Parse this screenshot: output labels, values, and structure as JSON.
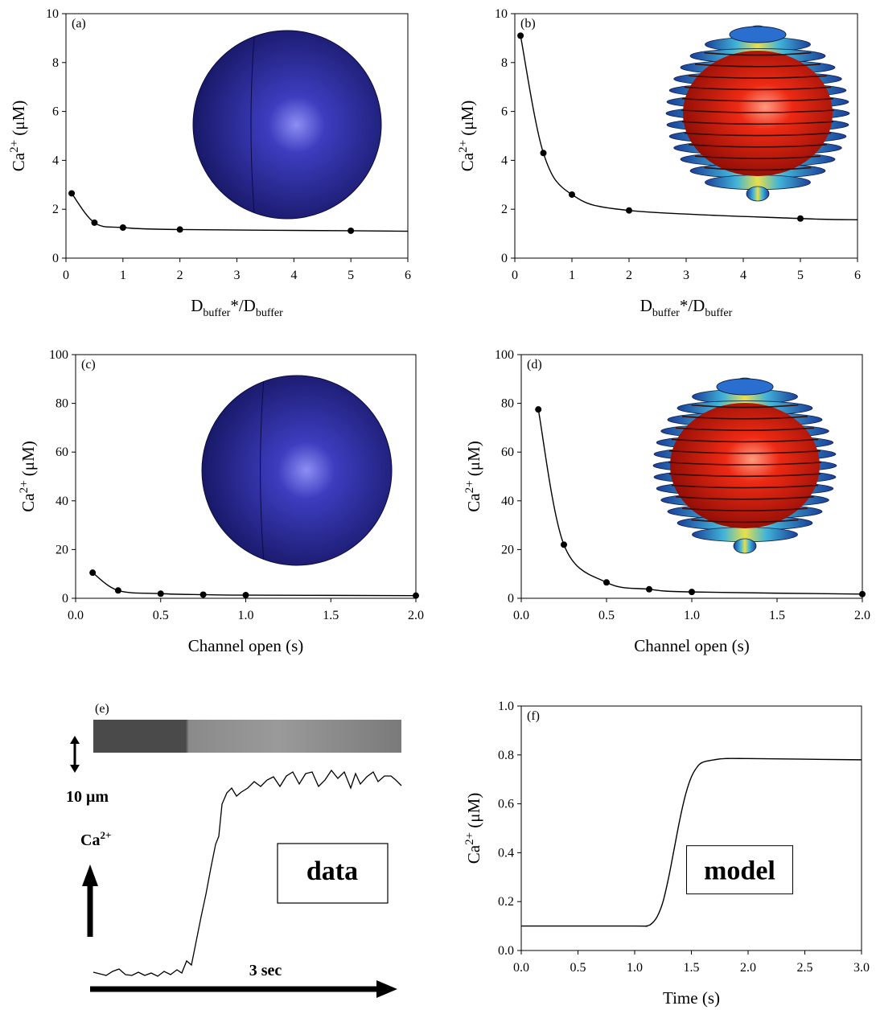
{
  "chart_data": [
    {
      "type": "line",
      "label": "(a)",
      "x_label": [
        "D",
        "buffer",
        "*/D",
        "buffer"
      ],
      "y_label": [
        "Ca",
        "2+",
        " (μM)"
      ],
      "xlim": [
        0,
        6
      ],
      "xticks": [
        0,
        1,
        2,
        3,
        4,
        5,
        6
      ],
      "ylim": [
        0,
        10
      ],
      "yticks": [
        0,
        2,
        4,
        6,
        8,
        10
      ],
      "series": [
        {
          "x": [
            0.1,
            0.5,
            1,
            2,
            5
          ],
          "values": [
            2.65,
            1.45,
            1.25,
            1.17,
            1.12
          ],
          "color": "#000000",
          "marker": true
        },
        {
          "x": [
            0.1,
            0.5,
            1,
            2,
            5,
            6
          ],
          "values": [
            2.65,
            1.45,
            1.25,
            1.17,
            1.12,
            1.1
          ],
          "color": "#000000",
          "marker": false
        }
      ]
    },
    {
      "type": "line",
      "label": "(b)",
      "x_label": [
        "D",
        "buffer",
        "*/D",
        "buffer"
      ],
      "y_label": [
        "Ca",
        "2+",
        " (μM)"
      ],
      "xlim": [
        0,
        6
      ],
      "xticks": [
        0,
        1,
        2,
        3,
        4,
        5,
        6
      ],
      "ylim": [
        0,
        10
      ],
      "yticks": [
        0,
        2,
        4,
        6,
        8,
        10
      ],
      "series": [
        {
          "x": [
            0.1,
            0.5,
            1,
            2,
            5
          ],
          "values": [
            9.1,
            4.3,
            2.6,
            1.95,
            1.62
          ],
          "color": "#000000",
          "marker": true
        },
        {
          "x": [
            0.1,
            0.5,
            1,
            2,
            5,
            6
          ],
          "values": [
            9.1,
            4.3,
            2.6,
            1.95,
            1.62,
            1.57
          ],
          "color": "#000000",
          "marker": false
        }
      ]
    },
    {
      "type": "line",
      "label": "(c)",
      "x_label": [
        "Channel open (s)"
      ],
      "y_label": [
        "Ca",
        "2+",
        " (μM)"
      ],
      "xlim": [
        0,
        2
      ],
      "xticks": [
        {
          "value": 0,
          "label": "0.0"
        },
        {
          "value": 0.5,
          "label": "0.5"
        },
        {
          "value": 1,
          "label": "1.0"
        },
        {
          "value": 1.5,
          "label": "1.5"
        },
        {
          "value": 2,
          "label": "2.0"
        }
      ],
      "ylim": [
        0,
        100
      ],
      "yticks": [
        0,
        20,
        40,
        60,
        80,
        100
      ],
      "series": [
        {
          "x": [
            0.1,
            0.25,
            0.5,
            0.75,
            1,
            2
          ],
          "values": [
            10.5,
            3.2,
            1.9,
            1.5,
            1.3,
            1.1
          ],
          "color": "#000000",
          "marker": true
        },
        {
          "x": [
            0.1,
            0.25,
            0.5,
            0.75,
            1,
            2
          ],
          "values": [
            10.5,
            3.2,
            1.9,
            1.5,
            1.3,
            1.1
          ],
          "color": "#000000",
          "marker": false
        }
      ]
    },
    {
      "type": "line",
      "label": "(d)",
      "x_label": [
        "Channel open (s)"
      ],
      "y_label": [
        "Ca",
        "2+",
        " (μM)"
      ],
      "xlim": [
        0,
        2
      ],
      "xticks": [
        {
          "value": 0,
          "label": "0.0"
        },
        {
          "value": 0.5,
          "label": "0.5"
        },
        {
          "value": 1,
          "label": "1.0"
        },
        {
          "value": 1.5,
          "label": "1.5"
        },
        {
          "value": 2,
          "label": "2.0"
        }
      ],
      "ylim": [
        0,
        100
      ],
      "yticks": [
        0,
        20,
        40,
        60,
        80,
        100
      ],
      "series": [
        {
          "x": [
            0.1,
            0.25,
            0.5,
            0.75,
            1,
            2
          ],
          "values": [
            77.5,
            22,
            6.5,
            3.7,
            2.6,
            1.7
          ],
          "color": "#000000",
          "marker": true
        },
        {
          "x": [
            0.1,
            0.25,
            0.5,
            0.75,
            1,
            2
          ],
          "values": [
            77.5,
            22,
            6.5,
            3.7,
            2.6,
            1.7
          ],
          "color": "#000000",
          "marker": false
        }
      ]
    },
    {
      "type": "line",
      "label": "(f)",
      "x_label": [
        "Time (s)"
      ],
      "y_label": [
        "Ca",
        "2+",
        " (μM)"
      ],
      "annotation": "model",
      "xlim": [
        0,
        3
      ],
      "xticks": [
        {
          "value": 0,
          "label": "0.0"
        },
        {
          "value": 0.5,
          "label": "0.5"
        },
        {
          "value": 1,
          "label": "1.0"
        },
        {
          "value": 1.5,
          "label": "1.5"
        },
        {
          "value": 2,
          "label": "2.0"
        },
        {
          "value": 2.5,
          "label": "2.5"
        },
        {
          "value": 3,
          "label": "3.0"
        }
      ],
      "ylim": [
        0,
        1
      ],
      "yticks": [
        {
          "value": 0,
          "label": "0.0"
        },
        0.2,
        0.4,
        0.6,
        0.8,
        {
          "value": 1,
          "label": "1.0"
        }
      ],
      "series": [
        {
          "x": [
            0,
            1.0,
            1.1,
            1.15,
            1.2,
            1.25,
            1.3,
            1.35,
            1.4,
            1.45,
            1.5,
            1.55,
            1.6,
            1.7,
            1.8,
            2.0,
            3.0
          ],
          "values": [
            0.1,
            0.1,
            0.1,
            0.11,
            0.14,
            0.2,
            0.3,
            0.42,
            0.54,
            0.64,
            0.71,
            0.75,
            0.77,
            0.78,
            0.785,
            0.785,
            0.78
          ],
          "color": "#000000",
          "marker": false
        }
      ]
    }
  ],
  "panel_e": {
    "label": "(e)",
    "scale_label": "10 μm",
    "ca_label": [
      "Ca",
      "2+"
    ],
    "time_label": "3 sec",
    "box_label": "data"
  }
}
